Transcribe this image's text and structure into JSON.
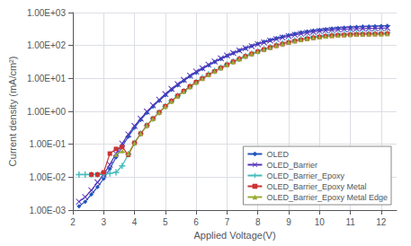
{
  "chart_data": {
    "type": "line",
    "xlabel": "Applied Voltage(V)",
    "ylabel": "Current density (mA/cm²)",
    "log": "y",
    "grid": true,
    "legend": "lower right",
    "xlim": [
      2,
      12.5
    ],
    "xticks": [
      2,
      3,
      4,
      5,
      6,
      7,
      8,
      9,
      10,
      11,
      12
    ],
    "ylim": [
      0.001,
      1000
    ],
    "yticks": [
      {
        "value": 0.001,
        "label": "1.00E-03"
      },
      {
        "value": 0.01,
        "label": "1.00E-02"
      },
      {
        "value": 0.1,
        "label": "1.00E-01"
      },
      {
        "value": 1,
        "label": "1.00E+00"
      },
      {
        "value": 10,
        "label": "1.00E+01"
      },
      {
        "value": 100,
        "label": "1.00E+02"
      },
      {
        "value": 1000,
        "label": "1.00E+03"
      }
    ],
    "series": [
      {
        "name": "OLED",
        "color": "#2255BB",
        "marker": "diamond",
        "x": [
          2.2,
          2.4,
          2.6,
          2.8,
          3.0,
          3.2,
          3.4,
          3.6,
          3.8,
          4.0,
          4.2,
          4.4,
          4.6,
          4.8,
          5.0,
          5.2,
          5.4,
          5.6,
          5.8,
          6.0,
          6.2,
          6.4,
          6.6,
          6.8,
          7.0,
          7.2,
          7.4,
          7.6,
          7.8,
          8.0,
          8.2,
          8.4,
          8.6,
          8.8,
          9.0,
          9.2,
          9.4,
          9.6,
          9.8,
          10.0,
          10.2,
          10.4,
          10.6,
          10.8,
          11.0,
          11.2,
          11.4,
          11.6,
          11.8,
          12.0,
          12.2
        ],
        "values": [
          0.0013,
          0.0018,
          0.003,
          0.005,
          0.009,
          0.018,
          0.04,
          0.085,
          0.17,
          0.32,
          0.55,
          0.9,
          1.4,
          2.1,
          3.1,
          4.5,
          6.2,
          8.5,
          11.5,
          15.0,
          19.5,
          25.0,
          31.5,
          39.0,
          48.0,
          58.0,
          70.0,
          83.0,
          97.0,
          113.0,
          129.0,
          147.0,
          166.0,
          186.0,
          206.0,
          228.0,
          250.0,
          268.0,
          285.0,
          300.0,
          315.0,
          328.0,
          340.0,
          350.0,
          360.0,
          368.0,
          375.0,
          380.0,
          385.0,
          390.0,
          395.0
        ]
      },
      {
        "name": "OLED_Barrier",
        "color": "#5533BB",
        "marker": "x",
        "x": [
          2.2,
          2.4,
          2.6,
          2.8,
          3.0,
          3.2,
          3.4,
          3.6,
          3.8,
          4.0,
          4.2,
          4.4,
          4.6,
          4.8,
          5.0,
          5.2,
          5.4,
          5.6,
          5.8,
          6.0,
          6.2,
          6.4,
          6.6,
          6.8,
          7.0,
          7.2,
          7.4,
          7.6,
          7.8,
          8.0,
          8.2,
          8.4,
          8.6,
          8.8,
          9.0,
          9.2,
          9.4,
          9.6,
          9.8,
          10.0,
          10.2,
          10.4,
          10.6,
          10.8,
          11.0,
          11.2,
          11.4,
          11.6,
          11.8,
          12.0,
          12.2
        ],
        "values": [
          0.0018,
          0.0025,
          0.004,
          0.007,
          0.012,
          0.024,
          0.052,
          0.105,
          0.2,
          0.36,
          0.6,
          0.98,
          1.52,
          2.25,
          3.35,
          4.8,
          6.7,
          9.0,
          12.2,
          16.2,
          20.5,
          26.0,
          32.5,
          40.5,
          49.5,
          59.5,
          70.5,
          82.5,
          95.5,
          110.0,
          124.0,
          140.0,
          156.0,
          174.0,
          192.0,
          210.0,
          227.0,
          244.0,
          260.0,
          274.0,
          287.0,
          297.0,
          306.0,
          313.0,
          319.0,
          323.0,
          327.0,
          330.0,
          333.0,
          336.0,
          338.0
        ]
      },
      {
        "name": "OLED_Barrier_Epoxy",
        "color": "#44BBBB",
        "marker": "plus",
        "x": [
          2.2,
          2.4,
          2.6,
          2.8,
          3.0,
          3.2,
          3.4,
          3.6,
          3.8,
          4.0,
          4.2,
          4.4,
          4.6,
          4.8,
          5.0,
          5.2,
          5.4,
          5.6,
          5.8,
          6.0,
          6.2,
          6.4,
          6.6,
          6.8,
          7.0,
          7.2,
          7.4,
          7.6,
          7.8,
          8.0,
          8.2,
          8.4,
          8.6,
          8.8,
          9.0,
          9.2,
          9.4,
          9.6,
          9.8,
          10.0,
          10.2,
          10.4,
          10.6,
          10.8,
          11.0,
          11.2,
          11.4,
          11.6,
          11.8,
          12.0,
          12.2
        ],
        "values": [
          0.012,
          0.012,
          0.012,
          0.012,
          0.012,
          0.013,
          0.014,
          0.022,
          0.05,
          0.11,
          0.21,
          0.37,
          0.6,
          0.93,
          1.42,
          2.05,
          2.95,
          4.1,
          5.7,
          7.7,
          10.3,
          13.3,
          16.8,
          21.2,
          26.5,
          32.5,
          39.5,
          47.5,
          56.5,
          66.5,
          77.5,
          89.5,
          102.0,
          115.0,
          129.0,
          143.0,
          157.0,
          171.0,
          184.0,
          195.0,
          206.0,
          214.0,
          220.0,
          225.0,
          229.0,
          232.0,
          234.0,
          236.0,
          238.0,
          240.0,
          242.0
        ]
      },
      {
        "name": "OLED_Barrier_Epoxy Metal",
        "color": "#CC3333",
        "marker": "square",
        "x": [
          2.6,
          2.8,
          3.0,
          3.2,
          3.4,
          3.6,
          3.8,
          4.0,
          4.2,
          4.4,
          4.6,
          4.8,
          5.0,
          5.2,
          5.4,
          5.6,
          5.8,
          6.0,
          6.2,
          6.4,
          6.6,
          6.8,
          7.0,
          7.2,
          7.4,
          7.6,
          7.8,
          8.0,
          8.2,
          8.4,
          8.6,
          8.8,
          9.0,
          9.2,
          9.4,
          9.6,
          9.8,
          10.0,
          10.2,
          10.4,
          10.6,
          10.8,
          11.0,
          11.2,
          11.4,
          11.6,
          11.8,
          12.0,
          12.2
        ],
        "values": [
          0.012,
          0.012,
          0.014,
          0.052,
          0.072,
          0.082,
          0.048,
          0.11,
          0.21,
          0.37,
          0.6,
          0.93,
          1.42,
          2.05,
          2.95,
          4.1,
          5.7,
          7.7,
          9.9,
          12.8,
          16.3,
          20.7,
          26.0,
          32.0,
          38.8,
          46.8,
          55.5,
          65.0,
          75.5,
          87.0,
          99.0,
          111.0,
          123.0,
          136.0,
          148.0,
          160.0,
          171.0,
          181.0,
          190.0,
          197.0,
          203.0,
          208.0,
          212.0,
          215.0,
          218.0,
          220.0,
          222.0,
          224.0,
          226.0
        ]
      },
      {
        "name": "OLED_Barrier_Epoxy Metal Edge",
        "color": "#99AA33",
        "marker": "triangle",
        "x": [
          3.4,
          3.6,
          3.8,
          4.0,
          4.2,
          4.4,
          4.6,
          4.8,
          5.0,
          5.2,
          5.4,
          5.6,
          5.8,
          6.0,
          6.2,
          6.4,
          6.6,
          6.8,
          7.0,
          7.2,
          7.4,
          7.6,
          7.8,
          8.0,
          8.2,
          8.4,
          8.6,
          8.8,
          9.0,
          9.2,
          9.4,
          9.6,
          9.8,
          10.0,
          10.2,
          10.4,
          10.6,
          10.8,
          11.0,
          11.2,
          11.4,
          11.6,
          11.8,
          12.0,
          12.2
        ],
        "values": [
          0.048,
          0.062,
          0.052,
          0.11,
          0.21,
          0.37,
          0.59,
          0.91,
          1.38,
          1.99,
          2.88,
          3.98,
          5.48,
          7.45,
          9.75,
          12.7,
          16.3,
          20.7,
          25.8,
          31.8,
          38.7,
          46.7,
          55.6,
          65.2,
          75.7,
          86.7,
          98.5,
          111.0,
          123.0,
          135.5,
          148.0,
          160.0,
          171.0,
          181.0,
          189.5,
          196.5,
          202.5,
          207.0,
          211.0,
          214.0,
          216.5,
          218.5,
          220.5,
          222.0,
          224.0
        ]
      }
    ]
  }
}
